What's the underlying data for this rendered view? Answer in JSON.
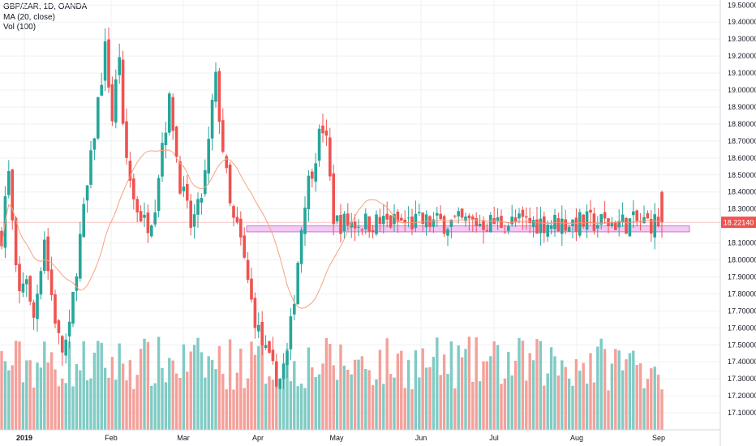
{
  "legend": {
    "symbol": "GBP/ZAR, 1D, OANDA",
    "ma": "MA (20, close)",
    "vol": "Vol (100)"
  },
  "colors": {
    "up": "#26a69a",
    "down": "#ef5350",
    "up_vol": "#80cbc4",
    "down_vol": "#f4a09a",
    "ma": "#f7a27e",
    "price_line": "#ef5350",
    "zone_fill": "#f3c9f5",
    "zone_stroke": "#c45cc7",
    "grid": "#eef0f3"
  },
  "chart_data": {
    "type": "candlestick",
    "title": "GBP/ZAR, 1D, OANDA",
    "y_axis_position": "right",
    "y_ticks": [
      "19.50000",
      "19.40000",
      "19.30000",
      "19.20000",
      "19.10000",
      "19.00000",
      "18.90000",
      "18.80000",
      "18.70000",
      "18.60000",
      "18.50000",
      "18.40000",
      "18.30000",
      "18.10000",
      "18.00000",
      "17.90000",
      "17.80000",
      "17.70000",
      "17.60000",
      "17.50000",
      "17.40000",
      "17.30000",
      "17.20000",
      "17.10000"
    ],
    "x_ticks": [
      "2019",
      "Feb",
      "Mar",
      "Apr",
      "May",
      "Jun",
      "Jul",
      "Aug",
      "Sep"
    ],
    "current_price_label": "18.22140",
    "current_price": 18.2214,
    "ylim": [
      17.0,
      19.53
    ],
    "support_zone": {
      "start": "2019-03-26",
      "end": "2019-09-04",
      "low": 18.165,
      "high": 18.2
    },
    "indicators": [
      "MA (20, close)",
      "Vol (100)"
    ],
    "grid": true
  }
}
